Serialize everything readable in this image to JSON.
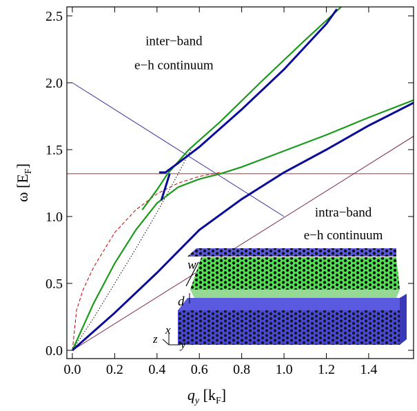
{
  "chart_data": {
    "type": "line",
    "x_label": [
      "q",
      "y",
      " [k",
      "F",
      "]"
    ],
    "y_label": [
      "ω [E",
      "F",
      "]"
    ],
    "xlim": [
      -0.026,
      1.612
    ],
    "ylim": [
      -0.062,
      2.567
    ],
    "xticks": [
      {
        "value": 0,
        "label": "0.0"
      },
      0.2,
      0.4,
      0.6,
      0.8,
      {
        "value": 1,
        "label": "1.0"
      },
      1.2,
      1.4
    ],
    "yticks": [
      {
        "value": 0,
        "label": "0.0"
      },
      0.5,
      {
        "value": 1,
        "label": "1.0"
      },
      1.5,
      {
        "value": 2,
        "label": "2.0"
      },
      2.5
    ],
    "annotations": [
      {
        "text": "inter−band",
        "x": 0.48,
        "y": 2.28
      },
      {
        "text": "e−h continuum",
        "x": 0.48,
        "y": 2.1
      },
      {
        "text": "intra−band",
        "x": 1.28,
        "y": 1.0
      },
      {
        "text": "e−h continuum",
        "x": 1.28,
        "y": 0.83
      }
    ],
    "series": [
      {
        "color": "#3b3b9e",
        "width": 1,
        "x": [
          0,
          1.0
        ],
        "values": [
          2.0,
          1.0
        ]
      },
      {
        "color": "#a03030",
        "width": 1,
        "x": [
          -0.026,
          1.612
        ],
        "values": [
          1.32,
          1.32
        ]
      },
      {
        "color": "#7a2050",
        "width": 1,
        "x": [
          0,
          1.612
        ],
        "values": [
          0,
          1.6
        ]
      },
      {
        "color": "#c00000",
        "width": 1,
        "dash": "5,3",
        "x": [
          0,
          0.02,
          0.05,
          0.1,
          0.2,
          0.3,
          0.4,
          0.5,
          0.6,
          0.7
        ],
        "values": [
          0,
          0.3,
          0.45,
          0.62,
          0.88,
          1.05,
          1.17,
          1.25,
          1.3,
          1.33
        ]
      },
      {
        "color": "#000000",
        "width": 1,
        "dash": "1.5,2.5",
        "x": [
          0,
          0.1,
          0.2,
          0.3,
          0.4,
          0.5,
          0.56
        ],
        "values": [
          0,
          0.24,
          0.5,
          0.76,
          1.03,
          1.32,
          1.5
        ]
      },
      {
        "color": "#1a9a1a",
        "width": 2.2,
        "x": [
          0,
          0.1,
          0.2,
          0.3,
          0.4,
          0.5,
          0.6,
          0.7,
          0.8,
          1.0,
          1.2,
          1.4,
          1.612
        ],
        "values": [
          0,
          0.35,
          0.65,
          0.9,
          1.1,
          1.22,
          1.28,
          1.32,
          1.37,
          1.49,
          1.61,
          1.74,
          1.87
        ]
      },
      {
        "color": "#1a9a1a",
        "width": 2.2,
        "x": [
          0.33,
          0.4,
          0.45,
          0.55,
          0.7,
          0.9,
          1.1,
          1.27
        ],
        "values": [
          1.05,
          1.2,
          1.32,
          1.5,
          1.71,
          2.02,
          2.32,
          2.567
        ]
      },
      {
        "color": "#0a0a9a",
        "width": 3,
        "x": [
          0,
          0.2,
          0.4,
          0.6,
          0.8,
          1.0,
          1.2,
          1.4,
          1.612
        ],
        "values": [
          0,
          0.28,
          0.58,
          0.9,
          1.13,
          1.33,
          1.5,
          1.68,
          1.85
        ]
      },
      {
        "color": "#0a0a9a",
        "width": 3,
        "x": [
          0.41,
          0.44,
          0.5,
          0.6,
          0.8,
          1.0,
          1.2,
          1.25
        ],
        "values": [
          1.33,
          1.33,
          1.4,
          1.52,
          1.8,
          2.1,
          2.44,
          2.55
        ]
      },
      {
        "color": "#0a0a9a",
        "width": 3,
        "x": [
          0.42,
          0.46
        ],
        "values": [
          1.12,
          1.32
        ]
      }
    ]
  },
  "inset": {
    "labels": [
      "w",
      "d",
      "x",
      "y",
      "z"
    ]
  }
}
